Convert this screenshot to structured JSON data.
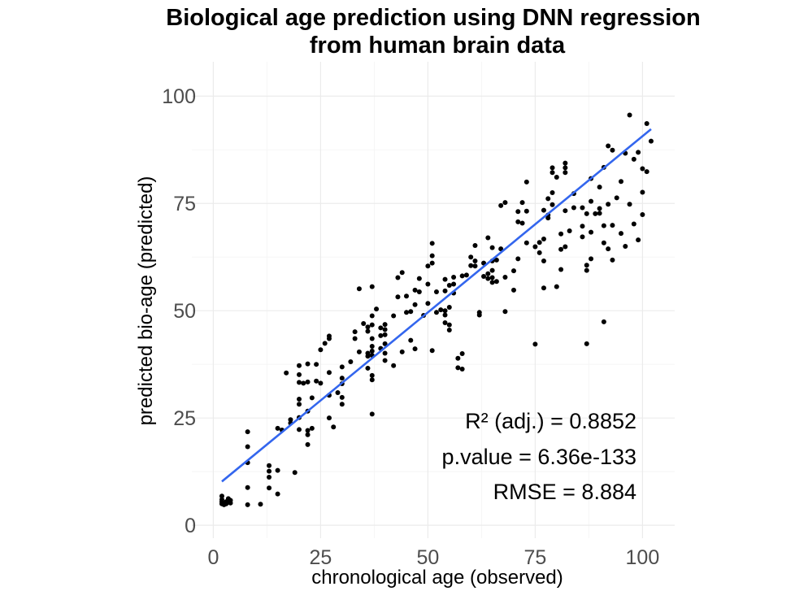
{
  "chart_data": {
    "type": "scatter",
    "title_lines": [
      "Biological age prediction using DNN regression",
      "from human brain data"
    ],
    "xlabel": "chronological age (observed)",
    "ylabel": "predicted bio-age (predicted)",
    "xlim": [
      -5,
      107.5
    ],
    "ylim": [
      -3,
      108
    ],
    "x_ticks": [
      0,
      25,
      50,
      75,
      100
    ],
    "y_ticks": [
      0,
      25,
      50,
      75,
      100
    ],
    "x_tick_labels": [
      "0",
      "25",
      "50",
      "75",
      "100"
    ],
    "y_tick_labels": [
      "0",
      "25",
      "50",
      "75",
      "100"
    ],
    "grid": true,
    "point_color": "#000000",
    "fit_color": "#3366ee",
    "fit_line": {
      "x": [
        2,
        102
      ],
      "y": [
        10.2,
        92.3
      ]
    },
    "annotations": [
      "R² (adj.) =  0.8852",
      "p.value = 6.36e-133",
      "RMSE = 8.884"
    ],
    "points": [
      [
        2,
        5
      ],
      [
        2,
        5.5
      ],
      [
        2,
        6
      ],
      [
        2,
        6.8
      ],
      [
        3,
        5
      ],
      [
        3,
        5.5
      ],
      [
        4,
        5.2
      ],
      [
        4,
        5.8
      ],
      [
        2.5,
        4.8
      ],
      [
        3.5,
        6.2
      ],
      [
        8,
        4.8
      ],
      [
        8,
        8.8
      ],
      [
        8,
        14.6
      ],
      [
        8,
        18.3
      ],
      [
        8,
        21.8
      ],
      [
        11,
        4.9
      ],
      [
        13,
        8.7
      ],
      [
        13,
        11.2
      ],
      [
        13,
        12.6
      ],
      [
        13,
        13.9
      ],
      [
        15,
        7.3
      ],
      [
        15,
        12.8
      ],
      [
        15,
        22.6
      ],
      [
        16,
        22.2
      ],
      [
        17,
        35.5
      ],
      [
        18,
        23.8
      ],
      [
        18,
        24.6
      ],
      [
        19,
        12.3
      ],
      [
        20,
        22.3
      ],
      [
        20,
        25.1
      ],
      [
        20,
        28.2
      ],
      [
        20,
        29.4
      ],
      [
        20,
        33.3
      ],
      [
        20,
        35.1
      ],
      [
        20,
        37.2
      ],
      [
        21,
        33.1
      ],
      [
        22,
        18.8
      ],
      [
        22,
        21.1
      ],
      [
        22,
        22.1
      ],
      [
        22,
        26.6
      ],
      [
        22,
        33.4
      ],
      [
        22,
        37.6
      ],
      [
        23,
        22.6
      ],
      [
        23,
        29.7
      ],
      [
        24,
        33.6
      ],
      [
        24,
        37.5
      ],
      [
        25,
        33.1
      ],
      [
        25,
        40.9
      ],
      [
        26,
        42.4
      ],
      [
        27,
        25
      ],
      [
        27,
        30.3
      ],
      [
        27,
        35.6
      ],
      [
        27,
        43.5
      ],
      [
        27,
        44.1
      ],
      [
        28,
        22.9
      ],
      [
        29,
        30.9
      ],
      [
        30,
        28.2
      ],
      [
        30,
        29.8
      ],
      [
        30,
        33
      ],
      [
        30,
        34.3
      ],
      [
        30,
        36.9
      ],
      [
        32,
        38.1
      ],
      [
        33,
        43.5
      ],
      [
        33,
        45.1
      ],
      [
        34,
        40.4
      ],
      [
        34,
        55.1
      ],
      [
        35,
        47
      ],
      [
        36,
        36.6
      ],
      [
        36,
        39.4
      ],
      [
        36,
        40.1
      ],
      [
        36,
        45.2
      ],
      [
        36,
        46.2
      ],
      [
        37,
        25.9
      ],
      [
        37,
        33.9
      ],
      [
        37,
        34.9
      ],
      [
        37,
        39.6
      ],
      [
        37,
        40.6
      ],
      [
        37,
        41.7
      ],
      [
        37,
        43.5
      ],
      [
        37,
        46.7
      ],
      [
        37,
        48.8
      ],
      [
        37,
        55.6
      ],
      [
        38,
        50.4
      ],
      [
        39,
        41.2
      ],
      [
        39,
        44.2
      ],
      [
        39,
        46
      ],
      [
        40,
        38.4
      ],
      [
        40,
        40.1
      ],
      [
        40,
        42.3
      ],
      [
        40,
        44.4
      ],
      [
        40,
        45.6
      ],
      [
        40,
        46.8
      ],
      [
        42,
        37.2
      ],
      [
        42,
        48.8
      ],
      [
        43,
        53.2
      ],
      [
        43,
        57.7
      ],
      [
        44,
        40.4
      ],
      [
        44,
        58.9
      ],
      [
        45,
        49.6
      ],
      [
        45,
        53.4
      ],
      [
        46,
        43.1
      ],
      [
        46,
        49.8
      ],
      [
        47,
        41.1
      ],
      [
        47,
        51.4
      ],
      [
        47,
        54.8
      ],
      [
        48,
        54.4
      ],
      [
        48,
        57.5
      ],
      [
        49,
        48.9
      ],
      [
        50,
        51.7
      ],
      [
        50,
        56.2
      ],
      [
        50,
        60.4
      ],
      [
        51,
        40.7
      ],
      [
        51,
        61.1
      ],
      [
        51,
        62.8
      ],
      [
        51,
        65.7
      ],
      [
        52,
        49.6
      ],
      [
        52,
        54.4
      ],
      [
        53,
        50.2
      ],
      [
        54,
        47.2
      ],
      [
        54,
        49
      ],
      [
        54,
        50
      ],
      [
        54,
        54.6
      ],
      [
        54,
        57.3
      ],
      [
        55,
        45.5
      ],
      [
        55,
        46.7
      ],
      [
        55,
        50.8
      ],
      [
        55,
        55.9
      ],
      [
        56,
        54.1
      ],
      [
        56,
        56.2
      ],
      [
        56,
        57.8
      ],
      [
        57,
        36.7
      ],
      [
        57,
        38.9
      ],
      [
        58,
        36.4
      ],
      [
        58,
        40
      ],
      [
        58,
        58.1
      ],
      [
        59,
        58.3
      ],
      [
        60,
        60.5
      ],
      [
        60,
        62.5
      ],
      [
        61,
        60.4
      ],
      [
        61,
        61.6
      ],
      [
        61,
        65.2
      ],
      [
        62,
        49
      ],
      [
        62,
        49.6
      ],
      [
        63,
        58
      ],
      [
        63,
        61.1
      ],
      [
        64,
        57.5
      ],
      [
        64,
        58.6
      ],
      [
        64,
        67
      ],
      [
        65,
        56.6
      ],
      [
        65,
        57.7
      ],
      [
        65,
        59.4
      ],
      [
        65,
        61.6
      ],
      [
        65,
        64.7
      ],
      [
        66,
        56.8
      ],
      [
        66,
        61.8
      ],
      [
        67,
        64.4
      ],
      [
        67,
        74.5
      ],
      [
        68,
        75.2
      ],
      [
        68,
        49.8
      ],
      [
        68,
        57.8
      ],
      [
        70,
        54.8
      ],
      [
        70,
        59.3
      ],
      [
        71,
        62.1
      ],
      [
        71,
        70.7
      ],
      [
        71,
        73.1
      ],
      [
        72,
        70.4
      ],
      [
        72,
        75.2
      ],
      [
        73,
        65.8
      ],
      [
        73,
        73.2
      ],
      [
        73,
        80
      ],
      [
        75,
        64.9
      ],
      [
        76,
        63.5
      ],
      [
        76,
        65.9
      ],
      [
        77,
        55.3
      ],
      [
        77,
        61.6
      ],
      [
        77,
        66.7
      ],
      [
        77,
        73.4
      ],
      [
        78,
        71.6
      ],
      [
        78,
        76.1
      ],
      [
        79,
        74.7
      ],
      [
        79,
        82.2
      ],
      [
        79,
        83.3
      ],
      [
        80,
        81.1
      ],
      [
        81,
        64.3
      ],
      [
        81,
        67.9
      ],
      [
        82,
        82.2
      ],
      [
        82,
        83.3
      ],
      [
        82,
        84.4
      ],
      [
        82,
        73.3
      ],
      [
        84,
        77.3
      ],
      [
        84,
        74
      ],
      [
        86,
        74
      ],
      [
        86,
        67.2
      ],
      [
        87,
        72.6
      ],
      [
        87,
        42.3
      ],
      [
        87,
        60.6
      ],
      [
        88,
        68.3
      ],
      [
        88,
        75.5
      ],
      [
        88,
        80.8
      ],
      [
        89,
        72.6
      ],
      [
        90,
        72.7
      ],
      [
        90,
        73.8
      ],
      [
        90,
        78.8
      ],
      [
        91,
        65.8
      ],
      [
        91,
        69.8
      ],
      [
        91,
        83.4
      ],
      [
        92,
        64.4
      ],
      [
        92,
        88.4
      ],
      [
        93,
        61.8
      ],
      [
        93,
        69.9
      ],
      [
        93,
        87.4
      ],
      [
        94,
        76.3
      ],
      [
        95,
        68
      ],
      [
        95,
        80.1
      ],
      [
        96,
        65
      ],
      [
        96,
        86.7
      ],
      [
        97,
        95.6
      ],
      [
        97,
        74.8
      ],
      [
        98,
        70.2
      ],
      [
        98,
        85.3
      ],
      [
        99,
        86.9
      ],
      [
        99,
        66.5
      ],
      [
        100,
        72.4
      ],
      [
        100,
        77.6
      ],
      [
        100,
        83.1
      ],
      [
        101,
        82.4
      ],
      [
        101,
        93.6
      ],
      [
        102,
        89.5
      ],
      [
        91,
        47.4
      ],
      [
        75,
        42.2
      ],
      [
        92,
        74.8
      ],
      [
        88,
        62.1
      ],
      [
        87,
        59.4
      ],
      [
        86,
        69.7
      ],
      [
        83,
        68.6
      ],
      [
        82,
        64.9
      ],
      [
        81,
        59.6
      ],
      [
        80,
        55.6
      ],
      [
        79,
        77.5
      ],
      [
        78,
        72.3
      ]
    ]
  }
}
